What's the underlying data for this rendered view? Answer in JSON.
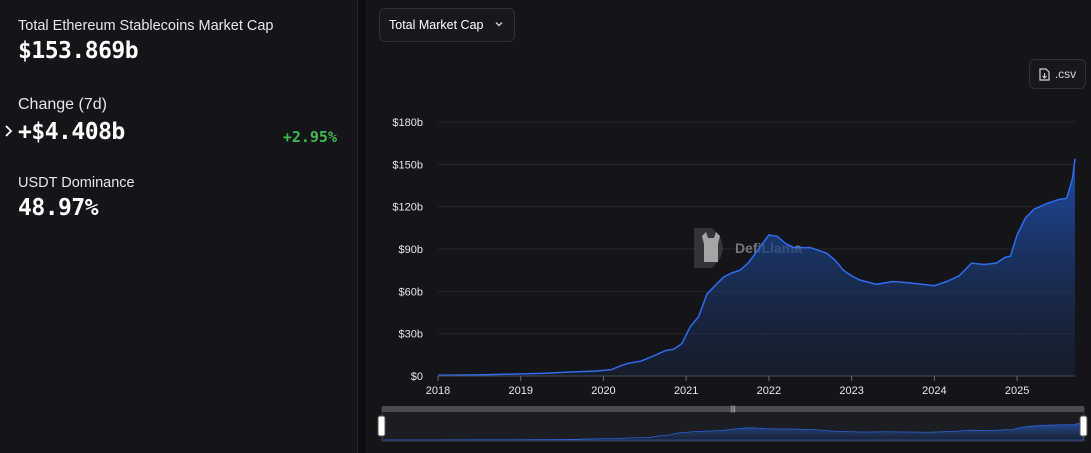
{
  "stats": {
    "market_cap": {
      "label": "Total Ethereum Stablecoins Market Cap",
      "value": "$153.869b"
    },
    "change": {
      "label": "Change (7d)",
      "value": "+$4.408b",
      "percent": "+2.95%"
    },
    "dominance": {
      "label": "USDT Dominance",
      "value": "48.97%"
    }
  },
  "controls": {
    "dropdown_label": "Total Market Cap",
    "csv_label": ".csv"
  },
  "watermark": "DefiLlama",
  "colors": {
    "line": "#2f6cf0",
    "area_top": "#1f4fae",
    "background": "#141519",
    "positive": "#3fb950"
  },
  "chart_data": {
    "type": "area",
    "title": "",
    "xlabel": "",
    "ylabel": "",
    "x_ticks": [
      "2018",
      "2019",
      "2020",
      "2021",
      "2022",
      "2023",
      "2024",
      "2025"
    ],
    "y_ticks": [
      "$0",
      "$30b",
      "$60b",
      "$90b",
      "$120b",
      "$150b",
      "$180b"
    ],
    "xlim": [
      2018.0,
      2025.7
    ],
    "ylim": [
      0,
      180
    ],
    "grid": true,
    "series": [
      {
        "x": [
          2018.0,
          2018.5,
          2019.0,
          2019.3,
          2019.6,
          2019.9,
          2020.1,
          2020.2,
          2020.3,
          2020.45,
          2020.6,
          2020.75,
          2020.85,
          2020.95,
          2021.05,
          2021.15,
          2021.25,
          2021.35,
          2021.45,
          2021.55,
          2021.65,
          2021.75,
          2021.85,
          2021.95,
          2022.0,
          2022.1,
          2022.2,
          2022.3,
          2022.5,
          2022.7,
          2022.8,
          2022.9,
          2023.0,
          2023.1,
          2023.3,
          2023.5,
          2023.7,
          2023.85,
          2024.0,
          2024.15,
          2024.3,
          2024.45,
          2024.6,
          2024.75,
          2024.85,
          2024.92,
          2025.0,
          2025.1,
          2025.2,
          2025.35,
          2025.5,
          2025.6,
          2025.67,
          2025.7
        ],
        "values": [
          0.5,
          0.8,
          1.5,
          2.0,
          2.8,
          3.5,
          4.5,
          7.0,
          9.0,
          10.5,
          14,
          18,
          19,
          23,
          35,
          42,
          58,
          64,
          70,
          73,
          75,
          80,
          88,
          96,
          100,
          99,
          94,
          91,
          91,
          87,
          82,
          75,
          71,
          68,
          65,
          67,
          66,
          65,
          64,
          67,
          71,
          80,
          79,
          80,
          84,
          85,
          100,
          112,
          118,
          122,
          125,
          126,
          140,
          154
        ]
      }
    ]
  }
}
